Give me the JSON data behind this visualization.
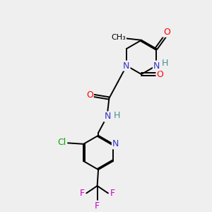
{
  "background_color": "#efefef",
  "colors": {
    "C": "#000000",
    "N": "#3333cc",
    "O": "#ff0000",
    "H": "#4a9090",
    "Cl": "#00aa00",
    "F": "#cc00cc"
  },
  "bond_color": "#000000",
  "bond_width": 1.4
}
